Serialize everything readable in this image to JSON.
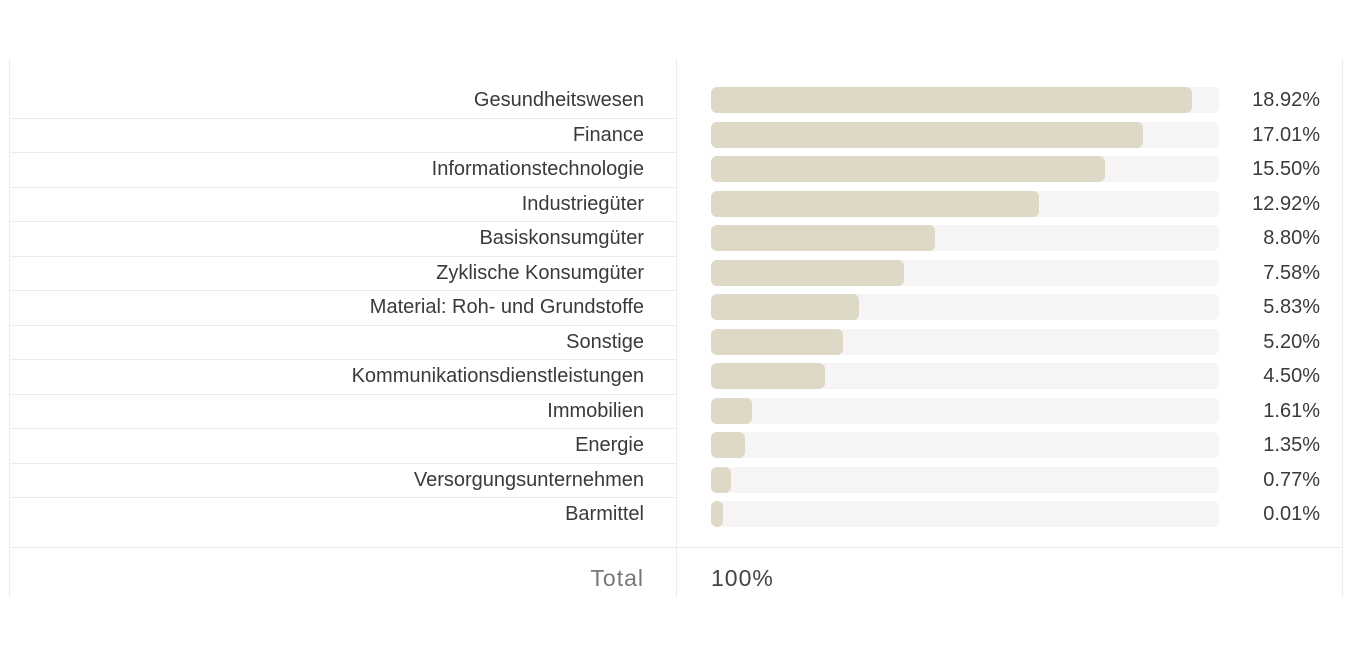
{
  "chart_data": {
    "type": "bar",
    "orientation": "horizontal",
    "categories": [
      "Gesundheitswesen",
      "Finance",
      "Informationstechnologie",
      "Industriegüter",
      "Basiskonsumgüter",
      "Zyklische Konsumgüter",
      "Material: Roh- und Grundstoffe",
      "Sonstige",
      "Kommunikationsdienstleistungen",
      "Immobilien",
      "Energie",
      "Versorgungsunternehmen",
      "Barmittel"
    ],
    "values": [
      18.92,
      17.01,
      15.5,
      12.92,
      8.8,
      7.58,
      5.83,
      5.2,
      4.5,
      1.61,
      1.35,
      0.77,
      0.01
    ],
    "value_labels": [
      "18.92%",
      "17.01%",
      "15.50%",
      "12.92%",
      "8.80%",
      "7.58%",
      "5.83%",
      "5.20%",
      "4.50%",
      "1.61%",
      "1.35%",
      "0.77%",
      "0.01%"
    ],
    "xlim": [
      0,
      20
    ],
    "colors": {
      "bar": "#ded8c6",
      "track": "#f6f4f4"
    }
  },
  "total": {
    "label": "Total",
    "value": "100%"
  }
}
